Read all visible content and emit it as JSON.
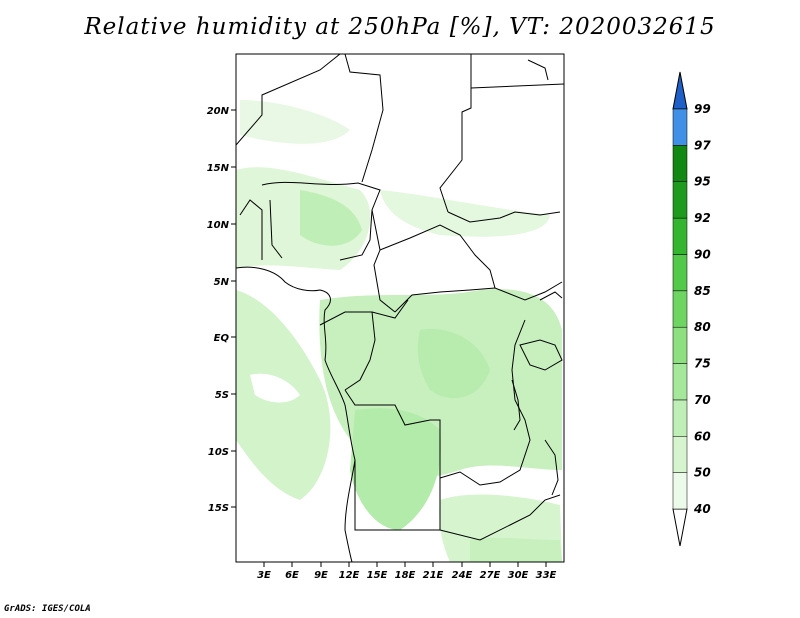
{
  "title": "Relative humidity at 250hPa [%], VT: 2020032615",
  "credit": "GrADS: IGES/COLA",
  "map": {
    "lat_ticks": [
      "20N",
      "15N",
      "10N",
      "5N",
      "EQ",
      "5S",
      "10S",
      "15S"
    ],
    "lon_ticks": [
      "3E",
      "6E",
      "9E",
      "12E",
      "15E",
      "18E",
      "21E",
      "24E",
      "27E",
      "30E",
      "33E"
    ]
  },
  "colorbar": {
    "levels": [
      {
        "label": "40",
        "color": "#ecfbe9"
      },
      {
        "label": "50",
        "color": "#d6f5cf"
      },
      {
        "label": "60",
        "color": "#bfefb6"
      },
      {
        "label": "70",
        "color": "#a6e89b"
      },
      {
        "label": "75",
        "color": "#8ddf80"
      },
      {
        "label": "80",
        "color": "#6fd562"
      },
      {
        "label": "85",
        "color": "#52c948"
      },
      {
        "label": "90",
        "color": "#34b530"
      },
      {
        "label": "92",
        "color": "#1e9a1e"
      },
      {
        "label": "95",
        "color": "#118811"
      },
      {
        "label": "97",
        "color": "#3f90e6"
      },
      {
        "label": "99",
        "color": "#2a78dc"
      }
    ],
    "top_color": "#1f60c8"
  }
}
